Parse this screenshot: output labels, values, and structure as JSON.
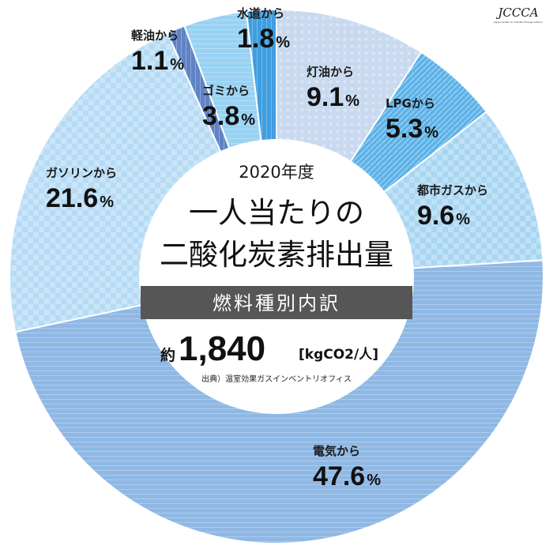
{
  "logo": {
    "mark": "JCCCA",
    "subtitle": "Japan Center for Climate Change Actions"
  },
  "center": {
    "year": "2020年度",
    "title_line1": "一人当たりの",
    "title_line2": "二酸化炭素排出量",
    "band": "燃料種別内訳",
    "total_prefix": "約",
    "total_value": "1,840",
    "total_unit": "[kgCO2/人]",
    "source": "出典）温室効果ガスインベントリオフィス"
  },
  "chart_data": {
    "type": "pie",
    "variant": "donut",
    "start": "top, clockwise",
    "total": 1840,
    "total_unit": "kgCO2/人",
    "slices": [
      {
        "label": "灯油から",
        "value": 9.1,
        "display": "9.1",
        "color": "#c9d9ef"
      },
      {
        "label": "LPGから",
        "value": 5.3,
        "display": "5.3",
        "color": "#5cb2e8"
      },
      {
        "label": "都市ガスから",
        "value": 9.6,
        "display": "9.6",
        "color": "#a8d6f2"
      },
      {
        "label": "電気から",
        "value": 47.6,
        "display": "47.6",
        "color": "#8fb8e4"
      },
      {
        "label": "ガソリンから",
        "value": 21.6,
        "display": "21.6",
        "color": "#b5dbf5"
      },
      {
        "label": "軽油から",
        "value": 1.1,
        "display": "1.1",
        "color": "#5f83c4"
      },
      {
        "label": "ゴミから",
        "value": 3.8,
        "display": "3.8",
        "color": "#99d2f3"
      },
      {
        "label": "水道から",
        "value": 1.8,
        "display": "1.8",
        "color": "#3e9ee0"
      }
    ]
  }
}
